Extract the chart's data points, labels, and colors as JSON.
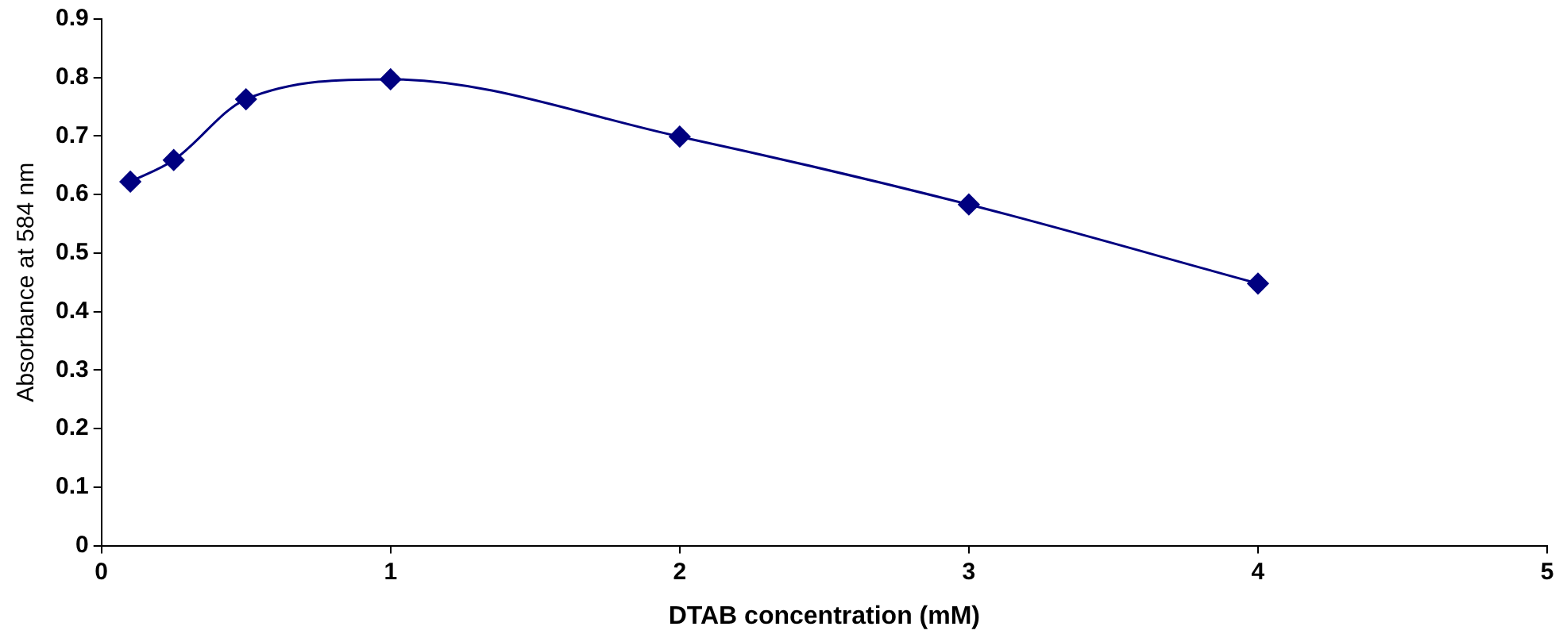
{
  "chart_data": {
    "type": "line",
    "xlabel": "DTAB concentration (mM)",
    "ylabel": "Absorbance at 584 nm",
    "x": [
      0.1,
      0.25,
      0.5,
      1,
      2,
      3,
      4
    ],
    "series": [
      {
        "color": "#000080",
        "values": [
          0.622,
          0.659,
          0.763,
          0.797,
          0.699,
          0.583,
          0.448
        ]
      }
    ],
    "xlim": [
      0,
      5
    ],
    "xticks": [
      0,
      1,
      2,
      3,
      4,
      5
    ],
    "ylim": [
      0,
      0.9
    ],
    "yticks": [
      0,
      0.1,
      0.2,
      0.3,
      0.4,
      0.5,
      0.6,
      0.7,
      0.8,
      0.9
    ],
    "grid": false,
    "legend": false,
    "marker": "diamond",
    "line_style": "solid"
  }
}
